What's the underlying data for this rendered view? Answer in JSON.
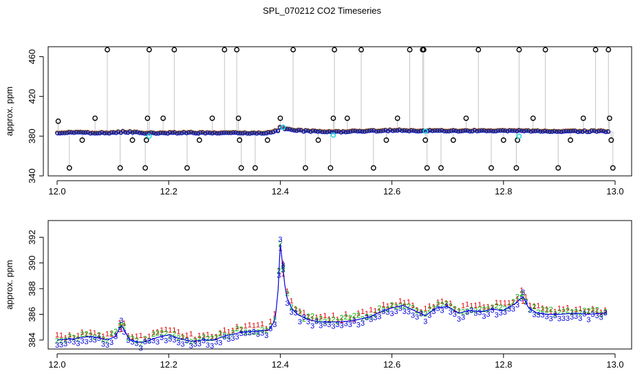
{
  "title": "SPL_070212  CO2 Timeseries",
  "colors": {
    "background": "#ffffff",
    "outlier_marker": "#000000",
    "series_red": "#dd0000",
    "series_green": "#00aa00",
    "series_blue": "#0000dd",
    "cyan_marker": "#22dddd",
    "drop_line": "#888888"
  },
  "chart_data": [
    {
      "type": "scatter",
      "title": "",
      "xlabel": "",
      "ylabel": "approx. ppm",
      "xlim": [
        12.0,
        13.0
      ],
      "ylim": [
        340,
        470
      ],
      "x_ticks": [
        12.0,
        12.2,
        12.4,
        12.6,
        12.8,
        13.0
      ],
      "x_tick_labels": [
        "12.0",
        "12.2",
        "12.4",
        "12.6",
        "12.8",
        "13.0"
      ],
      "y_ticks": [
        340,
        380,
        420,
        460
      ],
      "y_tick_labels": [
        "340",
        "380",
        "420",
        "460"
      ],
      "baseline": [
        [
          12.0,
          383.5
        ],
        [
          12.1,
          383.5
        ],
        [
          12.12,
          384.5
        ],
        [
          12.16,
          383
        ],
        [
          12.2,
          383.5
        ],
        [
          12.3,
          383.5
        ],
        [
          12.33,
          383
        ],
        [
          12.38,
          383.5
        ],
        [
          12.395,
          386
        ],
        [
          12.4,
          390
        ],
        [
          12.41,
          387
        ],
        [
          12.45,
          385
        ],
        [
          12.5,
          384.5
        ],
        [
          12.55,
          385
        ],
        [
          12.6,
          386
        ],
        [
          12.65,
          385.5
        ],
        [
          12.7,
          385.5
        ],
        [
          12.75,
          385.5
        ],
        [
          12.8,
          385.5
        ],
        [
          12.83,
          386
        ],
        [
          12.84,
          385.5
        ],
        [
          12.9,
          385
        ],
        [
          12.99,
          385
        ]
      ],
      "outliers": [
        [
          12.002,
          395
        ],
        [
          12.022,
          348
        ],
        [
          12.045,
          376
        ],
        [
          12.068,
          398
        ],
        [
          12.09,
          467
        ],
        [
          12.113,
          348
        ],
        [
          12.135,
          376
        ],
        [
          12.158,
          348
        ],
        [
          12.16,
          376
        ],
        [
          12.162,
          398
        ],
        [
          12.165,
          467
        ],
        [
          12.19,
          398
        ],
        [
          12.21,
          467
        ],
        [
          12.233,
          348
        ],
        [
          12.255,
          376
        ],
        [
          12.278,
          398
        ],
        [
          12.3,
          467
        ],
        [
          12.322,
          467
        ],
        [
          12.325,
          398
        ],
        [
          12.327,
          376
        ],
        [
          12.33,
          348
        ],
        [
          12.355,
          348
        ],
        [
          12.377,
          376
        ],
        [
          12.4,
          398
        ],
        [
          12.423,
          467
        ],
        [
          12.445,
          348
        ],
        [
          12.468,
          376
        ],
        [
          12.49,
          348
        ],
        [
          12.495,
          398
        ],
        [
          12.497,
          467
        ],
        [
          12.52,
          398
        ],
        [
          12.545,
          467
        ],
        [
          12.567,
          348
        ],
        [
          12.59,
          376
        ],
        [
          12.61,
          398
        ],
        [
          12.632,
          467
        ],
        [
          12.655,
          467
        ],
        [
          12.657,
          467
        ],
        [
          12.66,
          376
        ],
        [
          12.663,
          348
        ],
        [
          12.688,
          348
        ],
        [
          12.71,
          376
        ],
        [
          12.733,
          398
        ],
        [
          12.755,
          467
        ],
        [
          12.778,
          348
        ],
        [
          12.8,
          376
        ],
        [
          12.823,
          348
        ],
        [
          12.825,
          376
        ],
        [
          12.828,
          467
        ],
        [
          12.853,
          398
        ],
        [
          12.875,
          467
        ],
        [
          12.898,
          348
        ],
        [
          12.92,
          376
        ],
        [
          12.943,
          398
        ],
        [
          12.965,
          467
        ],
        [
          12.988,
          467
        ],
        [
          12.99,
          398
        ],
        [
          12.993,
          376
        ],
        [
          12.996,
          348
        ]
      ],
      "cyan_points": [
        [
          12.165,
          380
        ],
        [
          12.405,
          389
        ],
        [
          12.495,
          381
        ],
        [
          12.66,
          385
        ],
        [
          12.828,
          380
        ]
      ]
    },
    {
      "type": "scatter",
      "title": "",
      "xlabel": "",
      "ylabel": "approx. ppm",
      "xlim": [
        12.0,
        13.0
      ],
      "ylim": [
        383.3,
        393.3
      ],
      "x_ticks": [
        12.0,
        12.2,
        12.4,
        12.6,
        12.8,
        13.0
      ],
      "x_tick_labels": [
        "12.0",
        "12.2",
        "12.4",
        "12.6",
        "12.8",
        "13.0"
      ],
      "y_ticks": [
        384,
        386,
        388,
        390,
        392
      ],
      "y_tick_labels": [
        "384",
        "386",
        "388",
        "390",
        "392"
      ],
      "series": [
        {
          "name": "1",
          "color": "#dd0000",
          "offset": 0.35
        },
        {
          "name": "2",
          "color": "#00aa00",
          "offset": 0.15
        },
        {
          "name": "3",
          "color": "#0000dd",
          "offset": -0.2
        }
      ],
      "line": [
        [
          12.0,
          384.0
        ],
        [
          12.03,
          384.1
        ],
        [
          12.06,
          384.3
        ],
        [
          12.09,
          384.0
        ],
        [
          12.105,
          384.3
        ],
        [
          12.115,
          385.2
        ],
        [
          12.12,
          384.8
        ],
        [
          12.13,
          384.0
        ],
        [
          12.15,
          383.8
        ],
        [
          12.16,
          383.9
        ],
        [
          12.18,
          384.2
        ],
        [
          12.2,
          384.4
        ],
        [
          12.22,
          384.1
        ],
        [
          12.24,
          383.9
        ],
        [
          12.26,
          384.0
        ],
        [
          12.28,
          384.0
        ],
        [
          12.3,
          384.3
        ],
        [
          12.32,
          384.5
        ],
        [
          12.33,
          384.6
        ],
        [
          12.36,
          384.7
        ],
        [
          12.38,
          384.8
        ],
        [
          12.39,
          385.5
        ],
        [
          12.395,
          387.0
        ],
        [
          12.4,
          391.5
        ],
        [
          12.405,
          389.5
        ],
        [
          12.41,
          387.5
        ],
        [
          12.42,
          386.5
        ],
        [
          12.43,
          386.0
        ],
        [
          12.45,
          385.6
        ],
        [
          12.47,
          385.4
        ],
        [
          12.5,
          385.4
        ],
        [
          12.53,
          385.5
        ],
        [
          12.56,
          385.8
        ],
        [
          12.58,
          386.2
        ],
        [
          12.6,
          386.5
        ],
        [
          12.62,
          386.7
        ],
        [
          12.64,
          386.3
        ],
        [
          12.66,
          385.9
        ],
        [
          12.68,
          386.5
        ],
        [
          12.7,
          386.6
        ],
        [
          12.72,
          386.1
        ],
        [
          12.74,
          386.3
        ],
        [
          12.76,
          386.2
        ],
        [
          12.78,
          386.4
        ],
        [
          12.8,
          386.3
        ],
        [
          12.82,
          386.8
        ],
        [
          12.835,
          387.4
        ],
        [
          12.845,
          386.5
        ],
        [
          12.86,
          386.1
        ],
        [
          12.88,
          386.0
        ],
        [
          12.9,
          386.0
        ],
        [
          12.93,
          386.1
        ],
        [
          12.95,
          386.0
        ],
        [
          12.985,
          386.1
        ]
      ],
      "spikes": [
        [
          12.115,
          385.2
        ],
        [
          12.4,
          391.5
        ],
        [
          12.405,
          389.5
        ],
        [
          12.835,
          387.4
        ]
      ]
    }
  ]
}
